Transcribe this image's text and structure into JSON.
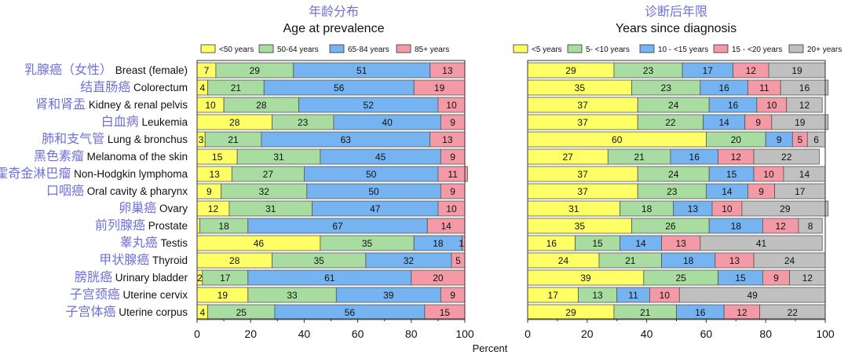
{
  "chart_data": [
    {
      "type": "bar",
      "orientation": "horizontal",
      "stacked": true,
      "title_cn": "年龄分布",
      "title": "Age at prevalence",
      "xlabel": "Percent",
      "xlim": [
        0,
        100
      ],
      "xticks": [
        "0",
        "20",
        "40",
        "60",
        "80",
        "100"
      ],
      "legend_position": "top",
      "categories_cn": [
        "乳腺癌（女性）",
        "结直肠癌",
        "肾和肾盂",
        "白血病",
        "肺和支气管",
        "黑色素瘤",
        "非霍奇金淋巴瘤",
        "口咽癌",
        "卵巢癌",
        "前列腺癌",
        "睾丸癌",
        "甲状腺癌",
        "膀胱癌",
        "子宫颈癌",
        "子宫体癌"
      ],
      "categories": [
        "Breast (female)",
        "Colorectum",
        "Kidney & renal pelvis",
        "Leukemia",
        "Lung & bronchus",
        "Melanoma of the skin",
        "Non-Hodgkin lymphoma",
        "Oral cavity & pharynx",
        "Ovary",
        "Prostate",
        "Testis",
        "Thyroid",
        "Urinary bladder",
        "Uterine cervix",
        "Uterine corpus"
      ],
      "series": [
        {
          "name": "<50 years",
          "color": "#ffff66",
          "values": [
            7,
            4,
            10,
            28,
            3,
            15,
            13,
            9,
            12,
            1,
            46,
            28,
            2,
            19,
            4
          ],
          "labels": [
            "7",
            "4",
            "10",
            "28",
            "3",
            "15",
            "13",
            "9",
            "12",
            "1",
            "46",
            "28",
            "2",
            "19",
            "4"
          ]
        },
        {
          "name": "50-64 years",
          "color": "#a9dca0",
          "values": [
            29,
            21,
            28,
            23,
            21,
            31,
            27,
            32,
            31,
            18,
            35,
            35,
            17,
            33,
            25
          ],
          "labels": [
            "29",
            "21",
            "28",
            "23",
            "21",
            "31",
            "27",
            "32",
            "31",
            "18",
            "35",
            "35",
            "17",
            "33",
            "25"
          ]
        },
        {
          "name": "65-84 years",
          "color": "#75b4f1",
          "values": [
            51,
            56,
            52,
            40,
            63,
            45,
            50,
            50,
            47,
            67,
            18,
            32,
            61,
            39,
            56
          ],
          "labels": [
            "51",
            "56",
            "52",
            "40",
            "63",
            "45",
            "50",
            "50",
            "47",
            "67",
            "18",
            "32",
            "61",
            "39",
            "56"
          ]
        },
        {
          "name": "85+ years",
          "color": "#f39aa6",
          "values": [
            13,
            19,
            10,
            9,
            13,
            9,
            11,
            9,
            10,
            14,
            1,
            5,
            20,
            9,
            15
          ],
          "labels": [
            "13",
            "19",
            "10",
            "9",
            "13",
            "9",
            "11",
            "9",
            "10",
            "14",
            "1",
            "5",
            "20",
            "9",
            "15"
          ]
        }
      ]
    },
    {
      "type": "bar",
      "orientation": "horizontal",
      "stacked": true,
      "title_cn": "诊断后年限",
      "title": "Years since diagnosis",
      "xlabel": "",
      "xlim": [
        0,
        100
      ],
      "xticks": [
        "0",
        "20",
        "40",
        "60",
        "80",
        "100"
      ],
      "legend_position": "top",
      "categories": [
        "Breast (female)",
        "Colorectum",
        "Kidney & renal pelvis",
        "Leukemia",
        "Lung & bronchus",
        "Melanoma of the skin",
        "Non-Hodgkin lymphoma",
        "Oral cavity & pharynx",
        "Ovary",
        "Prostate",
        "Testis",
        "Thyroid",
        "Urinary bladder",
        "Uterine cervix",
        "Uterine corpus"
      ],
      "series": [
        {
          "name": "<5 years",
          "color": "#ffff66",
          "values": [
            29,
            35,
            37,
            37,
            60,
            27,
            37,
            37,
            31,
            35,
            16,
            24,
            39,
            17,
            29
          ],
          "labels": [
            "29",
            "35",
            "37",
            "37",
            "60",
            "27",
            "37",
            "37",
            "31",
            "35",
            "16",
            "24",
            "39",
            "17",
            "29"
          ]
        },
        {
          "name": "5- <10 years",
          "color": "#a9dca0",
          "values": [
            23,
            23,
            24,
            22,
            20,
            21,
            24,
            23,
            18,
            26,
            15,
            21,
            25,
            13,
            21
          ],
          "labels": [
            "23",
            "23",
            "24",
            "22",
            "20",
            "21",
            "24",
            "23",
            "18",
            "26",
            "15",
            "21",
            "25",
            "13",
            "21"
          ]
        },
        {
          "name": "10 - <15 years",
          "color": "#75b4f1",
          "values": [
            17,
            16,
            16,
            14,
            9,
            16,
            15,
            14,
            13,
            18,
            14,
            18,
            15,
            11,
            16
          ],
          "labels": [
            "17",
            "16",
            "16",
            "14",
            "9",
            "16",
            "15",
            "14",
            "13",
            "18",
            "14",
            "18",
            "15",
            "11",
            "16"
          ]
        },
        {
          "name": "15 - <20 years",
          "color": "#f39aa6",
          "values": [
            12,
            11,
            10,
            9,
            5,
            12,
            10,
            9,
            10,
            12,
            13,
            13,
            9,
            10,
            12
          ],
          "labels": [
            "12",
            "11",
            "10",
            "9",
            "5",
            "12",
            "10",
            "9",
            "10",
            "12",
            "13",
            "13",
            "9",
            "10",
            "12"
          ]
        },
        {
          "name": "20+ years",
          "color": "#c0c0c0",
          "values": [
            19,
            16,
            12,
            19,
            6,
            22,
            14,
            17,
            29,
            8,
            41,
            24,
            12,
            49,
            22
          ],
          "labels": [
            "19",
            "16",
            "12",
            "19",
            "6",
            "22",
            "14",
            "17",
            "29",
            "8",
            "41",
            "24",
            "12",
            "49",
            "22"
          ]
        }
      ]
    }
  ]
}
